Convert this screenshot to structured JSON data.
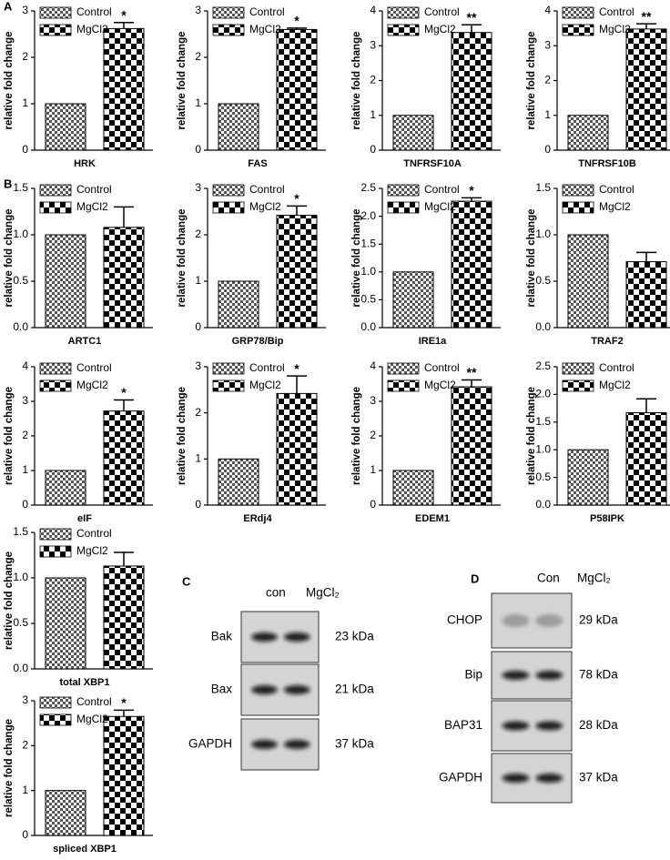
{
  "chart_data": [
    {
      "type": "bar",
      "panel": "A",
      "xlabel": "HRK",
      "ylabel": "relative fold change",
      "ylim": [
        0,
        3
      ],
      "yticks": [
        0,
        1,
        2,
        3
      ],
      "series": [
        {
          "name": "Control",
          "color": "#555555",
          "values": [
            1
          ]
        },
        {
          "name": "MgCl2",
          "color": "#000000",
          "values": [
            2.62
          ],
          "errors": [
            0.13
          ]
        }
      ],
      "annotation": "*"
    },
    {
      "type": "bar",
      "xlabel": "FAS",
      "ylabel": "relative fold change",
      "ylim": [
        0,
        3
      ],
      "yticks": [
        0,
        1,
        2,
        3
      ],
      "series": [
        {
          "name": "Control",
          "color": "#555555",
          "values": [
            1
          ]
        },
        {
          "name": "MgCl2",
          "color": "#000000",
          "values": [
            2.6
          ],
          "errors": [
            0.03
          ]
        }
      ],
      "annotation": "*"
    },
    {
      "type": "bar",
      "xlabel": "TNFRSF10A",
      "ylabel": "relative fold change",
      "ylim": [
        0,
        4
      ],
      "yticks": [
        0,
        1,
        2,
        3,
        4
      ],
      "series": [
        {
          "name": "Control",
          "color": "#555555",
          "values": [
            1
          ]
        },
        {
          "name": "MgCl2",
          "color": "#000000",
          "values": [
            3.38
          ],
          "errors": [
            0.22
          ]
        }
      ],
      "annotation": "**"
    },
    {
      "type": "bar",
      "xlabel": "TNFRSF10B",
      "ylabel": "relative fold change",
      "ylim": [
        0,
        4
      ],
      "yticks": [
        0,
        1,
        2,
        3,
        4
      ],
      "series": [
        {
          "name": "Control",
          "color": "#555555",
          "values": [
            1
          ]
        },
        {
          "name": "MgCl2",
          "color": "#000000",
          "values": [
            3.48
          ],
          "errors": [
            0.15
          ]
        }
      ],
      "annotation": "**"
    },
    {
      "type": "bar",
      "panel": "B",
      "xlabel": "ARTC1",
      "ylabel": "relative fold change",
      "ylim": [
        0,
        1.5
      ],
      "yticks": [
        {
          "value": 0,
          "label": "0.0"
        },
        0.5,
        {
          "value": 1,
          "label": "1.0"
        },
        1.5
      ],
      "series": [
        {
          "name": "Control",
          "color": "#555555",
          "values": [
            1
          ]
        },
        {
          "name": "MgCl2",
          "color": "#000000",
          "values": [
            1.08
          ],
          "errors": [
            0.22
          ]
        }
      ]
    },
    {
      "type": "bar",
      "xlabel": "GRP78/Bip",
      "ylabel": "relative fold change",
      "ylim": [
        0,
        3
      ],
      "yticks": [
        0,
        1,
        2,
        3
      ],
      "series": [
        {
          "name": "Control",
          "color": "#555555",
          "values": [
            1
          ]
        },
        {
          "name": "MgCl2",
          "color": "#000000",
          "values": [
            2.42
          ],
          "errors": [
            0.2
          ]
        }
      ],
      "annotation": "*"
    },
    {
      "type": "bar",
      "xlabel": "IRE1a",
      "ylabel": "relative fold change",
      "ylim": [
        0,
        2.5
      ],
      "yticks": [
        {
          "value": 0,
          "label": "0.0"
        },
        0.5,
        {
          "value": 1,
          "label": "1.0"
        },
        1.5,
        {
          "value": 2,
          "label": "2.0"
        },
        2.5
      ],
      "series": [
        {
          "name": "Control",
          "color": "#555555",
          "values": [
            1
          ]
        },
        {
          "name": "MgCl2",
          "color": "#000000",
          "values": [
            2.27
          ],
          "errors": [
            0.06
          ]
        }
      ],
      "annotation": "*"
    },
    {
      "type": "bar",
      "xlabel": "TRAF2",
      "ylabel": "relative fold change",
      "ylim": [
        0,
        1.5
      ],
      "yticks": [
        {
          "value": 0,
          "label": "0.0"
        },
        0.5,
        {
          "value": 1,
          "label": "1.0"
        },
        1.5
      ],
      "series": [
        {
          "name": "Control",
          "color": "#555555",
          "values": [
            1
          ]
        },
        {
          "name": "MgCl2",
          "color": "#000000",
          "values": [
            0.71
          ],
          "errors": [
            0.1
          ]
        }
      ]
    },
    {
      "type": "bar",
      "xlabel": "eIF",
      "ylabel": "relative fold change",
      "ylim": [
        0,
        4
      ],
      "yticks": [
        0,
        1,
        2,
        3,
        4
      ],
      "series": [
        {
          "name": "Control",
          "color": "#555555",
          "values": [
            1
          ]
        },
        {
          "name": "MgCl2",
          "color": "#000000",
          "values": [
            2.72
          ],
          "errors": [
            0.32
          ]
        }
      ],
      "annotation": "*"
    },
    {
      "type": "bar",
      "xlabel": "ERdj4",
      "ylabel": "relative fold change",
      "ylim": [
        0,
        3
      ],
      "yticks": [
        0,
        1,
        2,
        3
      ],
      "series": [
        {
          "name": "Control",
          "color": "#555555",
          "values": [
            1
          ]
        },
        {
          "name": "MgCl2",
          "color": "#000000",
          "values": [
            2.42
          ],
          "errors": [
            0.38
          ]
        }
      ],
      "annotation": "*"
    },
    {
      "type": "bar",
      "xlabel": "EDEM1",
      "ylabel": "relative fold change",
      "ylim": [
        0,
        4
      ],
      "yticks": [
        0,
        1,
        2,
        3,
        4
      ],
      "series": [
        {
          "name": "Control",
          "color": "#555555",
          "values": [
            1
          ]
        },
        {
          "name": "MgCl2",
          "color": "#000000",
          "values": [
            3.42
          ],
          "errors": [
            0.2
          ]
        }
      ],
      "annotation": "**"
    },
    {
      "type": "bar",
      "xlabel": "P58IPK",
      "ylabel": "relative fold change",
      "ylim": [
        0,
        2.5
      ],
      "yticks": [
        {
          "value": 0,
          "label": "0.0"
        },
        0.5,
        {
          "value": 1,
          "label": "1.0"
        },
        1.5,
        {
          "value": 2,
          "label": "2.0"
        },
        2.5
      ],
      "series": [
        {
          "name": "Control",
          "color": "#555555",
          "values": [
            1
          ]
        },
        {
          "name": "MgCl2",
          "color": "#000000",
          "values": [
            1.67
          ],
          "errors": [
            0.25
          ]
        }
      ]
    },
    {
      "type": "bar",
      "xlabel": "total XBP1",
      "ylabel": "relative fold change",
      "ylim": [
        0,
        1.5
      ],
      "yticks": [
        {
          "value": 0,
          "label": "0.0"
        },
        0.5,
        {
          "value": 1,
          "label": "1.0"
        },
        1.5
      ],
      "series": [
        {
          "name": "Control",
          "color": "#555555",
          "values": [
            1
          ]
        },
        {
          "name": "MgCl2",
          "color": "#000000",
          "values": [
            1.13
          ],
          "errors": [
            0.15
          ]
        }
      ]
    },
    {
      "type": "bar",
      "xlabel": "spliced XBP1",
      "ylabel": "relative fold change",
      "ylim": [
        0,
        3
      ],
      "yticks": [
        0,
        1,
        2,
        3
      ],
      "series": [
        {
          "name": "Control",
          "color": "#555555",
          "values": [
            1
          ]
        },
        {
          "name": "MgCl2",
          "color": "#000000",
          "values": [
            2.65
          ],
          "errors": [
            0.14
          ]
        }
      ],
      "annotation": "*"
    }
  ],
  "blots": [
    {
      "panel": "C",
      "lanes": [
        "con",
        "MgCl₂"
      ],
      "rows": [
        {
          "label": "Bak",
          "size": "23 kDa"
        },
        {
          "label": "Bax",
          "size": "21 kDa"
        },
        {
          "label": "GAPDH",
          "size": "37 kDa"
        }
      ]
    },
    {
      "panel": "D",
      "lanes": [
        "Con",
        "MgCl₂"
      ],
      "rows": [
        {
          "label": "CHOP",
          "size": "29 kDa"
        },
        {
          "label": "Bip",
          "size": "78 kDa"
        },
        {
          "label": "BAP31",
          "size": "28 kDa"
        },
        {
          "label": "GAPDH",
          "size": "37 kDa"
        }
      ]
    }
  ]
}
